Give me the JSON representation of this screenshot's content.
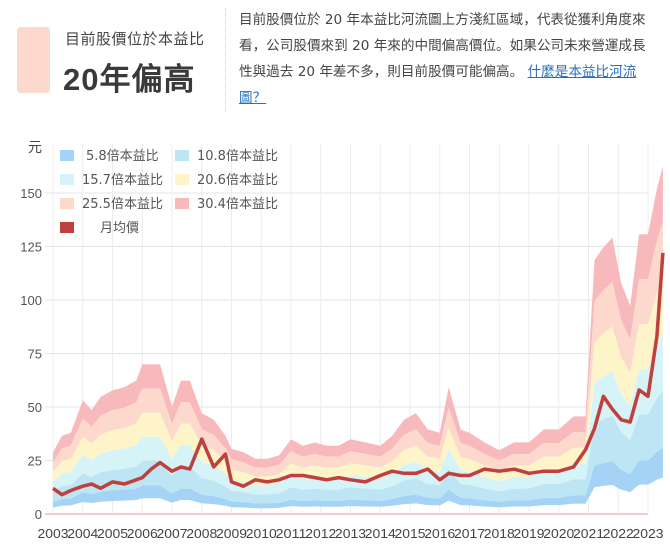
{
  "verdict": {
    "caption": "目前股價位於本益比",
    "value": "20年偏高",
    "swatch_color": "#fcd9cc"
  },
  "description": {
    "text": "目前股價位於 20 年本益比河流圖上方淺紅區域，代表從獲利角度來看，公司股價來到 20 年來的中間偏高價位。如果公司未來營運成長性與過去 20 年差不多，則目前股價可能偏高。",
    "link_label": "什麼是本益比河流圖？"
  },
  "chart_data": {
    "type": "area",
    "title": "",
    "xlabel": "",
    "ylabel": "元",
    "ylim": [
      0,
      160
    ],
    "yticks": [
      0,
      25,
      50,
      75,
      100,
      125,
      150
    ],
    "xticks": [
      "2003",
      "2004",
      "2005",
      "2006",
      "2007",
      "2008",
      "2009",
      "2010",
      "2011",
      "2012",
      "2013",
      "2014",
      "2015",
      "2016",
      "2017",
      "2018",
      "2019",
      "2020",
      "2021",
      "2022",
      "2023"
    ],
    "grid": true,
    "legend_position": "top-left inside",
    "x": [
      2003.0,
      2003.3,
      2003.6,
      2004.0,
      2004.3,
      2004.6,
      2005.0,
      2005.4,
      2005.8,
      2006.0,
      2006.3,
      2006.6,
      2007.0,
      2007.3,
      2007.6,
      2008.0,
      2008.4,
      2008.8,
      2009.0,
      2009.4,
      2009.8,
      2010.2,
      2010.6,
      2011.0,
      2011.4,
      2011.8,
      2012.2,
      2012.6,
      2013.0,
      2013.5,
      2014.0,
      2014.4,
      2014.8,
      2015.2,
      2015.6,
      2016.0,
      2016.3,
      2016.7,
      2017.0,
      2017.5,
      2018.0,
      2018.5,
      2019.0,
      2019.5,
      2020.0,
      2020.5,
      2020.9,
      2021.2,
      2021.5,
      2021.8,
      2022.1,
      2022.4,
      2022.7,
      2023.0,
      2023.3,
      2023.5
    ],
    "eps": [
      0.95,
      1.2,
      1.25,
      1.75,
      1.6,
      1.8,
      1.9,
      1.95,
      2.05,
      2.3,
      2.3,
      2.3,
      1.65,
      2.05,
      2.05,
      1.55,
      1.45,
      1.2,
      1.0,
      0.95,
      0.85,
      0.85,
      0.9,
      1.15,
      1.05,
      1.1,
      1.05,
      1.05,
      1.15,
      1.1,
      1.05,
      1.2,
      1.45,
      1.55,
      1.3,
      1.25,
      1.95,
      1.3,
      1.25,
      1.1,
      0.98,
      1.1,
      1.1,
      1.3,
      1.3,
      1.5,
      1.5,
      3.9,
      4.1,
      4.25,
      3.55,
      3.2,
      4.3,
      4.3,
      5.0,
      5.35
    ],
    "price": [
      12,
      9,
      11,
      13,
      14,
      12,
      15,
      14,
      16,
      17,
      21,
      24,
      20,
      22,
      21,
      35,
      22,
      28,
      15,
      13,
      16,
      15,
      16,
      18,
      18,
      17,
      16,
      17,
      16,
      15,
      18,
      20,
      19,
      19,
      21,
      16,
      19,
      18,
      18,
      21,
      20,
      21,
      19,
      20,
      20,
      22,
      30,
      40,
      55,
      49,
      44,
      43,
      58,
      55,
      83,
      122
    ],
    "series": [
      {
        "name": "5.8倍本益比",
        "multiple": 5.8,
        "color": "#a5d3f5"
      },
      {
        "name": "10.8倍本益比",
        "multiple": 10.8,
        "color": "#bde5f4"
      },
      {
        "name": "15.7倍本益比",
        "multiple": 15.7,
        "color": "#d6f4f8"
      },
      {
        "name": "20.6倍本益比",
        "multiple": 20.6,
        "color": "#fdf5c9"
      },
      {
        "name": "25.5倍本益比",
        "multiple": 25.5,
        "color": "#fcd9cc"
      },
      {
        "name": "30.4倍本益比",
        "multiple": 30.4,
        "color": "#f8b9bd"
      },
      {
        "name": "月均價",
        "color": "#c0403e"
      }
    ]
  }
}
